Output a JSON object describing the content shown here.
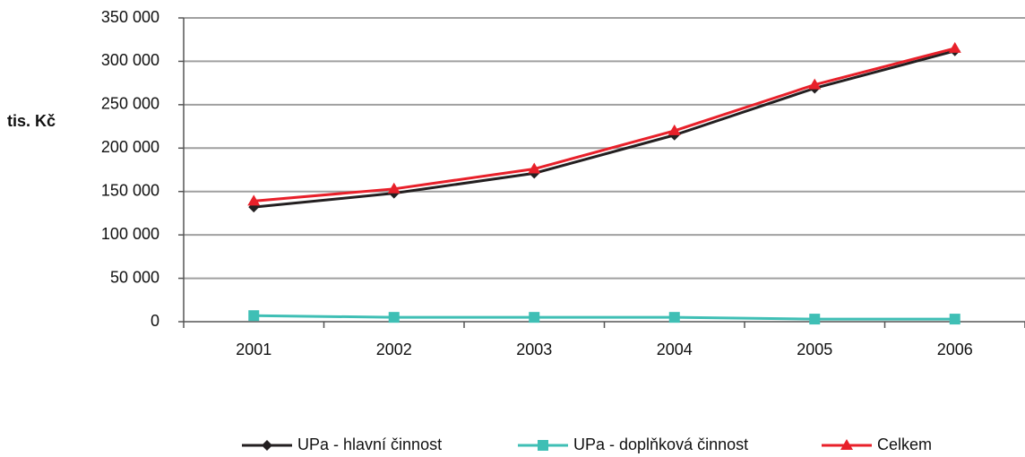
{
  "chart_data": {
    "type": "line",
    "y_label": "tis. Kč",
    "categories": [
      "2001",
      "2002",
      "2003",
      "2004",
      "2005",
      "2006"
    ],
    "series": [
      {
        "name": "UPa - hlavní činnost",
        "color": "#231f20",
        "marker": "diamond",
        "values": [
          132000,
          148000,
          171000,
          215000,
          269000,
          312000
        ]
      },
      {
        "name": "UPa - doplňková činnost",
        "color": "#3fbfb5",
        "marker": "square",
        "values": [
          7000,
          5000,
          5000,
          5000,
          3000,
          3000
        ]
      },
      {
        "name": "Celkem",
        "color": "#e8202a",
        "marker": "triangle",
        "values": [
          139000,
          153000,
          176000,
          220000,
          273000,
          315000
        ]
      }
    ],
    "ylim": [
      0,
      350000
    ],
    "yticks": [
      {
        "value": 0,
        "label": "0"
      },
      {
        "value": 50000,
        "label": "50 000"
      },
      {
        "value": 100000,
        "label": "100 000"
      },
      {
        "value": 150000,
        "label": "150 000"
      },
      {
        "value": 200000,
        "label": "200 000"
      },
      {
        "value": 250000,
        "label": "250 000"
      },
      {
        "value": 300000,
        "label": "300 000"
      },
      {
        "value": 350000,
        "label": "350 000"
      }
    ],
    "grid": true,
    "legend": "bottom"
  }
}
